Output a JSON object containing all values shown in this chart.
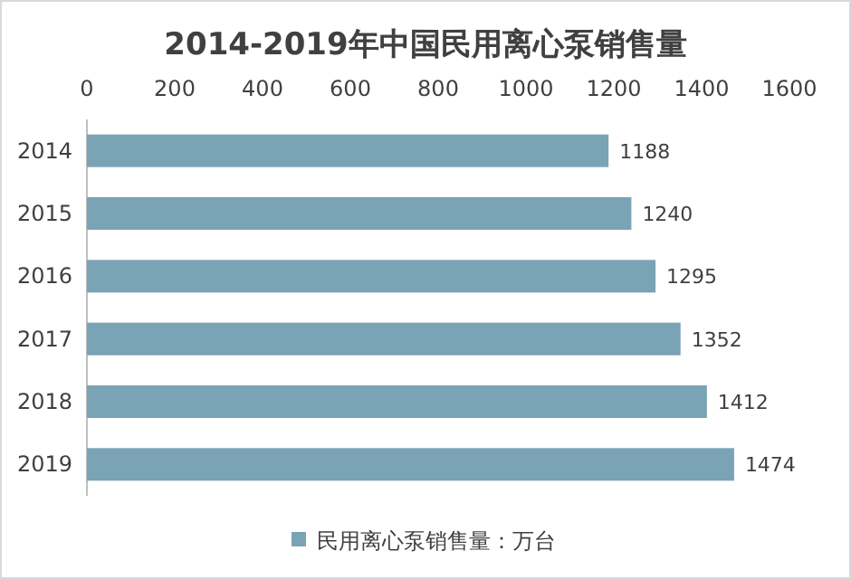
{
  "chart_data": {
    "type": "bar",
    "orientation": "horizontal",
    "title": "2014-2019年中国民用离心泵销售量",
    "categories": [
      "2014",
      "2015",
      "2016",
      "2017",
      "2018",
      "2019"
    ],
    "series": [
      {
        "name": "民用离心泵销售量：万台",
        "color": "#7aa3b5",
        "values": [
          1188,
          1240,
          1295,
          1352,
          1412,
          1474
        ]
      }
    ],
    "xlim": [
      0,
      1600
    ],
    "xticks": [
      0,
      200,
      400,
      600,
      800,
      1000,
      1200,
      1400,
      1600
    ],
    "data_labels": true,
    "legend": "bottom"
  }
}
